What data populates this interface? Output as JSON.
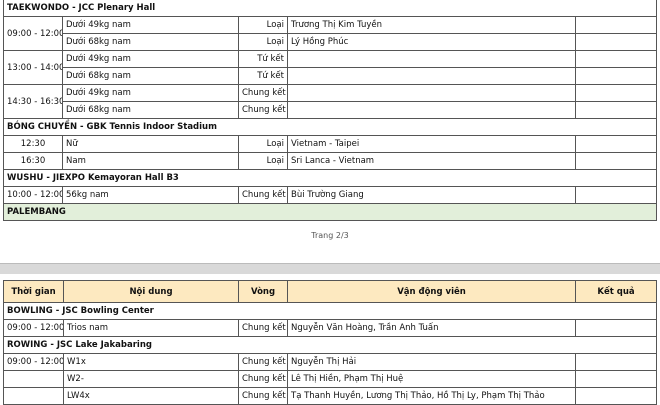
{
  "page1": {
    "sections": [
      {
        "title": "TAEKWONDO - JCC Plenary Hall",
        "rows": [
          {
            "time": "09:00 - 12:00",
            "event": "Dưới 49kg nam",
            "round": "Loại",
            "athletes": "Trương Thị Kim Tuyền",
            "result": ""
          },
          {
            "time": "",
            "event": "Dưới 68kg nam",
            "round": "Loại",
            "athletes": "Lý Hồng Phúc",
            "result": ""
          },
          {
            "time": "13:00 - 14:00",
            "event": "Dưới 49kg nam",
            "round": "Tứ kết",
            "athletes": "",
            "result": ""
          },
          {
            "time": "",
            "event": "Dưới 68kg nam",
            "round": "Tứ kết",
            "athletes": "",
            "result": ""
          },
          {
            "time": "14:30 - 16:30",
            "event": "Dưới 49kg nam",
            "round": "Chung kết",
            "athletes": "",
            "result": ""
          },
          {
            "time": "",
            "event": "Dưới 68kg nam",
            "round": "Chung kết",
            "athletes": "",
            "result": ""
          }
        ]
      },
      {
        "title": "BÓNG CHUYỀN - GBK Tennis Indoor Stadium",
        "rows": [
          {
            "time": "12:30",
            "event": "Nữ",
            "round": "Loại",
            "athletes": "Vietnam - Taipei",
            "result": ""
          },
          {
            "time": "16:30",
            "event": "Nam",
            "round": "Loại",
            "athletes": "Sri Lanca - Vietnam",
            "result": ""
          }
        ]
      },
      {
        "title": "WUSHU - JIEXPO Kemayoran Hall B3",
        "rows": [
          {
            "time": "10:00 - 12:00",
            "event": "56kg nam",
            "round": "Chung kết",
            "athletes": "Bùi Trường Giang",
            "result": ""
          }
        ]
      }
    ],
    "region": "PALEMBANG",
    "page_number": "Trang 2/3",
    "region_color": "#e2efda"
  },
  "page2": {
    "headers": [
      "Thời gian",
      "Nội dung",
      "Vòng",
      "Vận động viên",
      "Kết quả"
    ],
    "header_color": "#fde9c0",
    "sections": [
      {
        "title": "BOWLING - JSC Bowling Center",
        "rows": [
          {
            "time": "09:00 - 12:00",
            "event": "Trios nam",
            "round": "Chung kết",
            "athletes": "Nguyễn Văn Hoàng, Trần Anh Tuấn",
            "result": ""
          }
        ]
      },
      {
        "title": "ROWING - JSC Lake Jakabaring",
        "rows": [
          {
            "time": "09:00 - 12:00",
            "event": "W1x",
            "round": "Chung kết",
            "athletes": "Nguyễn Thị Hải",
            "result": ""
          },
          {
            "time": "",
            "event": "W2-",
            "round": "Chung kết",
            "athletes": "Lê Thị Hiền, Phạm Thị Huệ",
            "result": ""
          },
          {
            "time": "",
            "event": "LW4x",
            "round": "Chung kết",
            "athletes": "Tạ Thanh Huyền, Lương Thị Thảo, Hồ Thị Ly, Phạm Thị Thảo",
            "result": ""
          }
        ]
      }
    ]
  }
}
